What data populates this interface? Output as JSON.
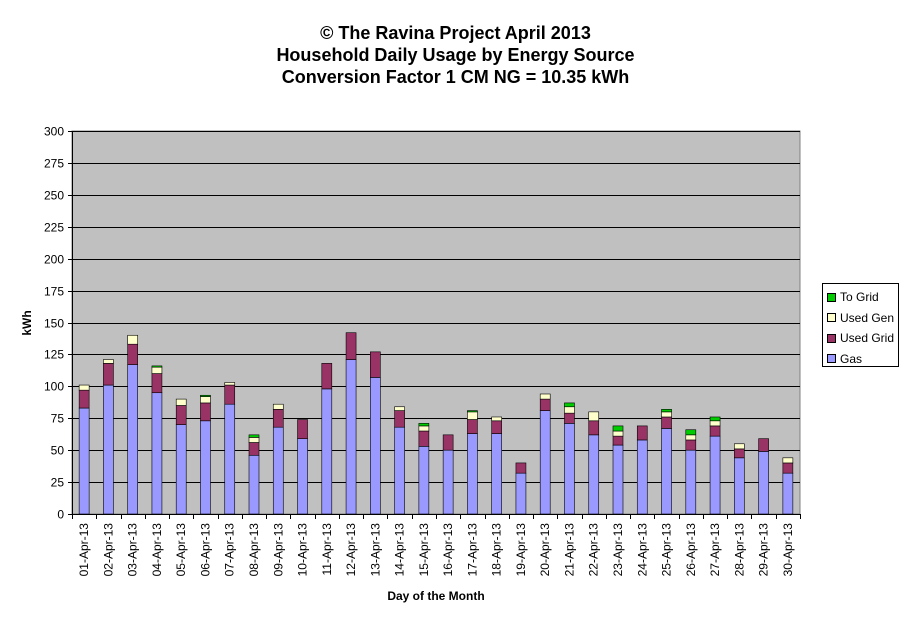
{
  "chart_data": {
    "type": "bar",
    "stacked": true,
    "title": [
      "© The Ravina Project April 2013",
      "Household Daily Usage by Energy Source",
      "Conversion Factor 1 CM NG = 10.35 kWh"
    ],
    "xlabel": "Day of the Month",
    "ylabel": "kWh",
    "ylim": [
      0,
      300
    ],
    "yticks": [
      0,
      25,
      50,
      75,
      100,
      125,
      150,
      175,
      200,
      225,
      250,
      275,
      300
    ],
    "grid": true,
    "legend_position": "right",
    "categories": [
      "01-Apr-13",
      "02-Apr-13",
      "03-Apr-13",
      "04-Apr-13",
      "05-Apr-13",
      "06-Apr-13",
      "07-Apr-13",
      "08-Apr-13",
      "09-Apr-13",
      "10-Apr-13",
      "11-Apr-13",
      "12-Apr-13",
      "13-Apr-13",
      "14-Apr-13",
      "15-Apr-13",
      "16-Apr-13",
      "17-Apr-13",
      "18-Apr-13",
      "19-Apr-13",
      "20-Apr-13",
      "21-Apr-13",
      "22-Apr-13",
      "23-Apr-13",
      "24-Apr-13",
      "25-Apr-13",
      "26-Apr-13",
      "27-Apr-13",
      "28-Apr-13",
      "29-Apr-13",
      "30-Apr-13"
    ],
    "series": [
      {
        "name": "Gas",
        "color": "#9999ff",
        "values": [
          83,
          101,
          117,
          95,
          70,
          73,
          86,
          46,
          68,
          59,
          98,
          121,
          107,
          68,
          53,
          50,
          63,
          63,
          32,
          81,
          71,
          62,
          54,
          58,
          67,
          50,
          61,
          44,
          49,
          32
        ]
      },
      {
        "name": "Used Grid",
        "color": "#993366",
        "values": [
          14,
          17,
          16,
          15,
          15,
          14,
          15,
          10,
          14,
          15,
          20,
          21,
          20,
          13,
          12,
          12,
          11,
          10,
          8,
          9,
          8,
          11,
          7,
          11,
          9,
          8,
          8,
          7,
          10,
          8
        ]
      },
      {
        "name": "Used Gen",
        "color": "#ffffcc",
        "values": [
          4,
          3,
          7,
          5,
          5,
          5,
          2,
          4,
          4,
          0,
          0,
          0,
          0,
          3,
          4,
          0,
          6,
          3,
          0,
          4,
          5,
          7,
          4,
          0,
          4,
          4,
          4,
          4,
          0,
          4
        ]
      },
      {
        "name": "To Grid",
        "color": "#00cc00",
        "values": [
          0,
          0,
          0,
          1,
          0,
          1,
          0,
          2,
          0,
          0,
          0,
          0,
          0,
          0,
          2,
          0,
          1,
          0,
          0,
          0,
          3,
          0,
          4,
          0,
          2,
          4,
          3,
          0,
          0,
          0
        ]
      }
    ],
    "legend_order": [
      "To Grid",
      "Used Gen",
      "Used Grid",
      "Gas"
    ],
    "plot_background": "#c0c0c0"
  }
}
